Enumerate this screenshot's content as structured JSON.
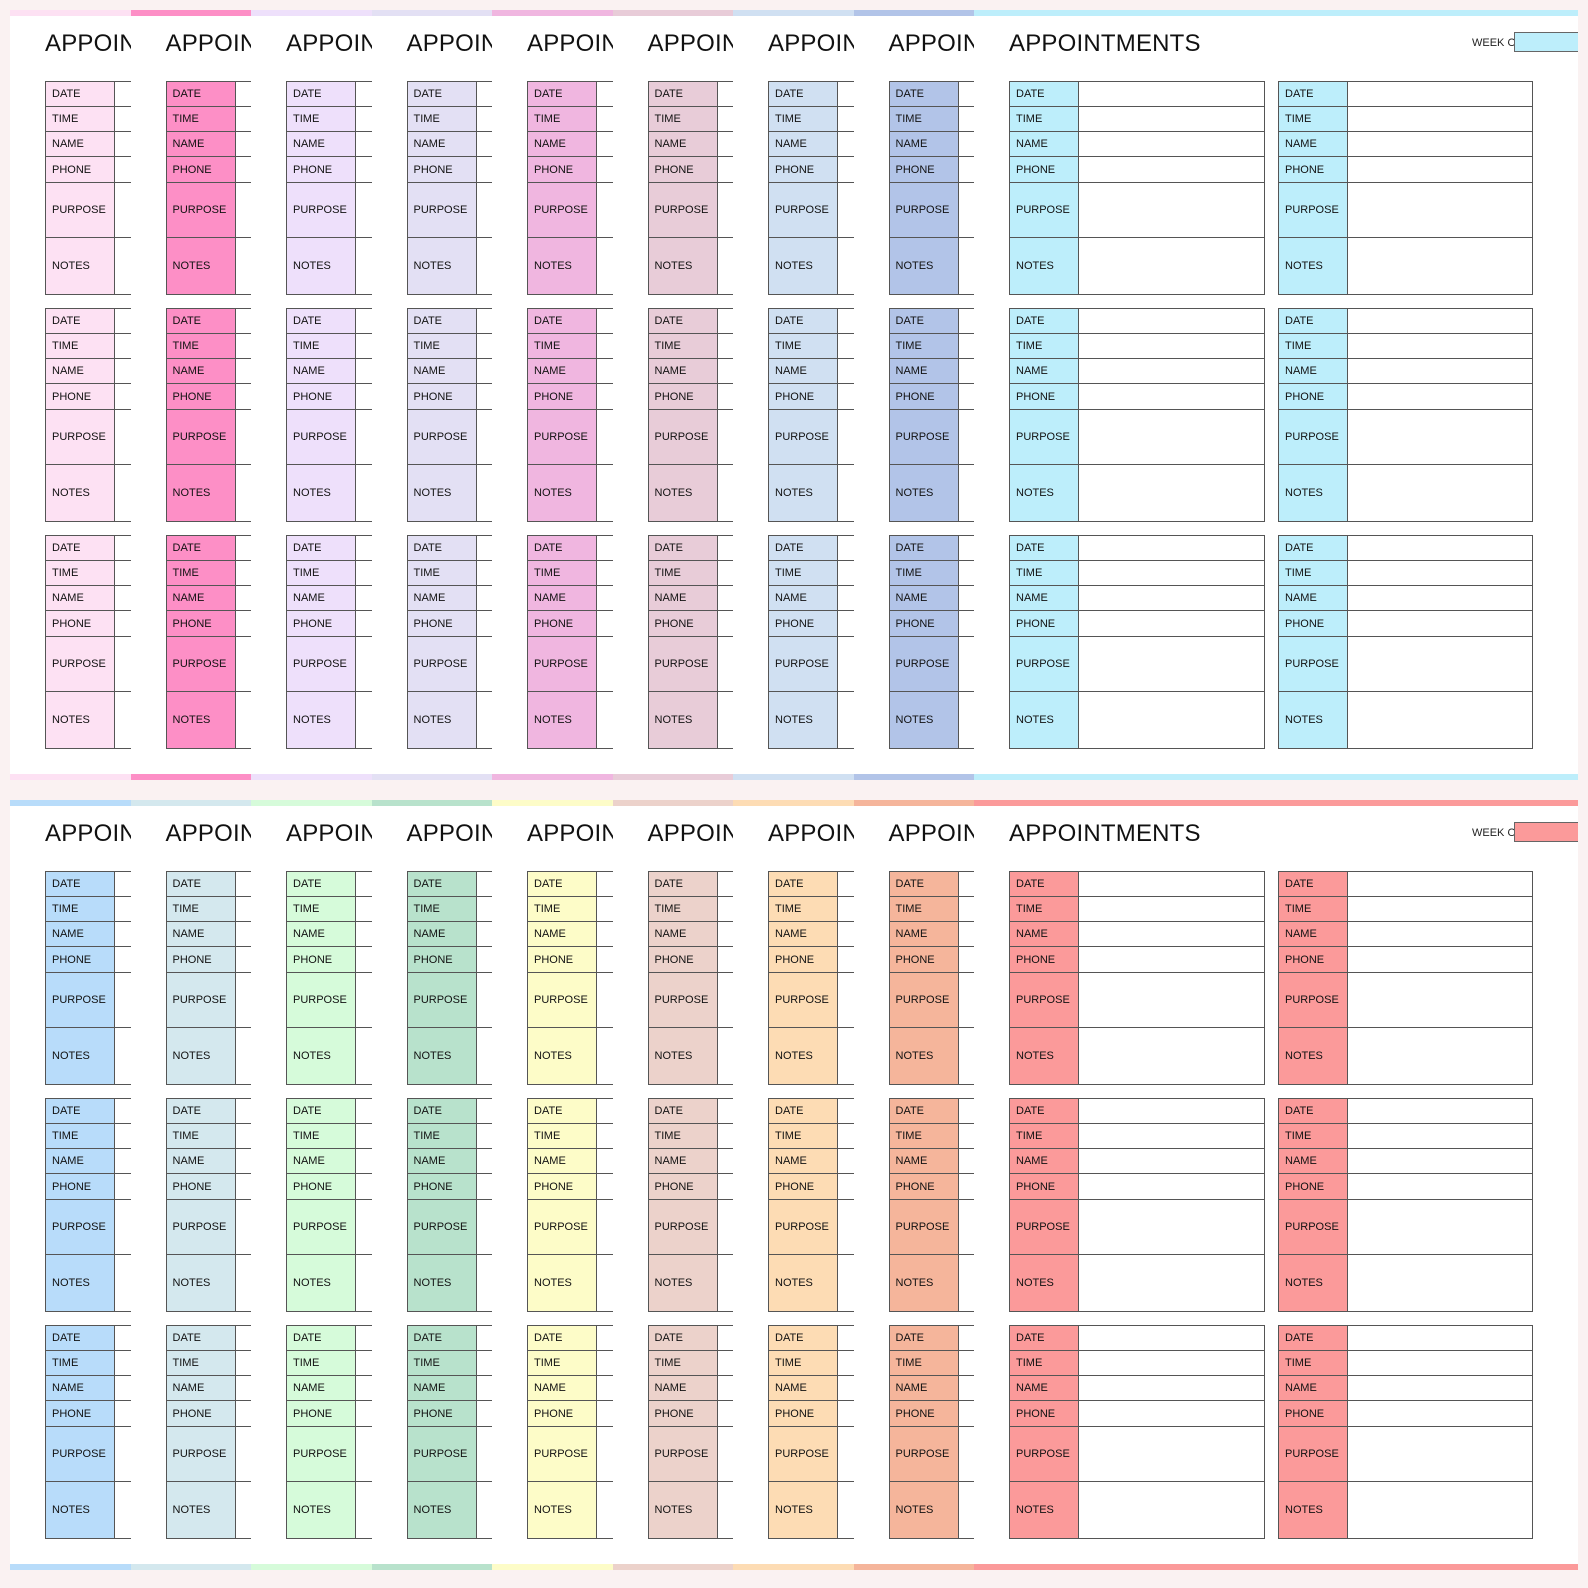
{
  "labels": {
    "title": "APPOINTMENTS",
    "week_of": "WEEK OF:",
    "fields": [
      "DATE",
      "TIME",
      "NAME",
      "PHONE",
      "PURPOSE",
      "NOTES"
    ]
  },
  "panels": [
    {
      "id": "top",
      "accent": "#bdeefb",
      "colors": [
        "#fde1f3",
        "#fd8fc6",
        "#eee0fb",
        "#e3e0f4",
        "#f0b6e0",
        "#e8ccd8",
        "#d0e0f2",
        "#b2c4e8",
        "#bdeefb"
      ]
    },
    {
      "id": "bottom",
      "accent": "#fb9a9a",
      "colors": [
        "#b8dcfa",
        "#d4e8ee",
        "#d6fbda",
        "#b8e2cc",
        "#fdfcc8",
        "#ecd2cb",
        "#fddcb4",
        "#f5b59b",
        "#fb9a9a"
      ]
    }
  ]
}
